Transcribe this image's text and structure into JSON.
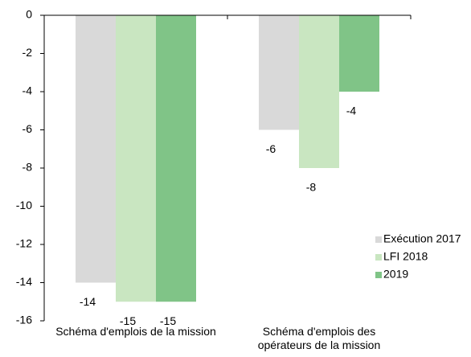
{
  "chart_data": {
    "type": "bar",
    "categories": [
      "Schéma d'emplois de la mission",
      "Schéma d'emplois des opérateurs de la mission"
    ],
    "series": [
      {
        "name": "Exécution 2017",
        "color": "#d9d9d9",
        "values": [
          -14,
          -6
        ]
      },
      {
        "name": "LFI 2018",
        "color": "#c9e6c1",
        "values": [
          -15,
          -8
        ]
      },
      {
        "name": "2019",
        "color": "#80c487",
        "values": [
          -15,
          -4
        ]
      }
    ],
    "ylim": [
      -16,
      0
    ],
    "yticks": [
      0,
      -2,
      -4,
      -6,
      -8,
      -10,
      -12,
      -14,
      -16
    ],
    "legend": "lower right"
  }
}
